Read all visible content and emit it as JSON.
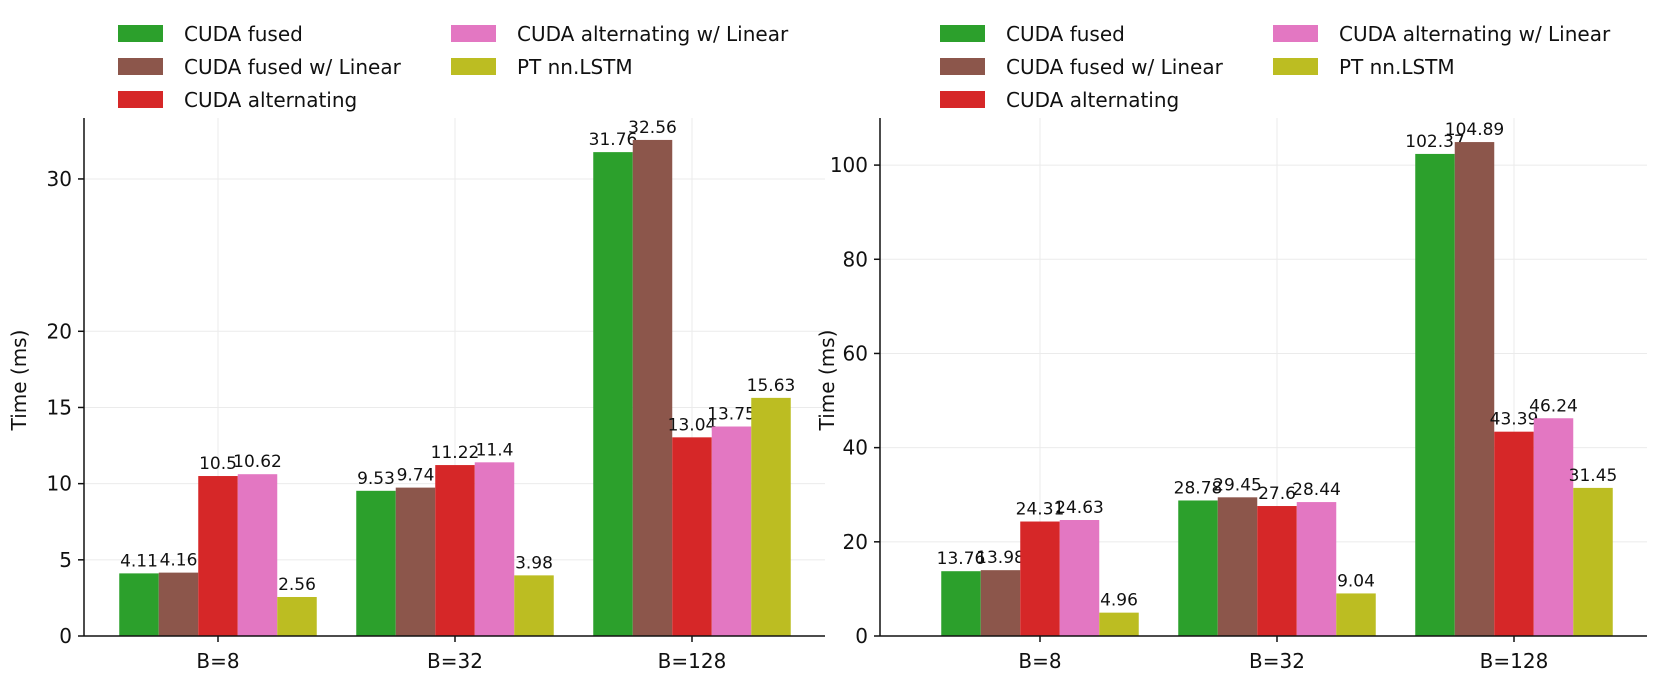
{
  "chart_data": [
    {
      "type": "bar",
      "title": "",
      "xlabel": "",
      "ylabel": "Time (ms)",
      "yticks": [
        0,
        5,
        10,
        15,
        20,
        30
      ],
      "ylim": [
        0,
        34
      ],
      "grid": true,
      "legend_position": "top",
      "categories": [
        "B=8",
        "B=32",
        "B=128"
      ],
      "series": [
        {
          "name": "CUDA fused",
          "color": "#2ca02c",
          "values": [
            4.11,
            9.53,
            31.76
          ]
        },
        {
          "name": "CUDA fused w/ Linear",
          "color": "#8c564b",
          "values": [
            4.16,
            9.74,
            32.56
          ]
        },
        {
          "name": "CUDA alternating",
          "color": "#d62728",
          "values": [
            10.5,
            11.22,
            13.04
          ]
        },
        {
          "name": "CUDA alternating w/ Linear",
          "color": "#e377c2",
          "values": [
            10.62,
            11.4,
            13.75
          ]
        },
        {
          "name": "PT nn.LSTM",
          "color": "#bcbd22",
          "values": [
            2.56,
            3.98,
            15.63
          ]
        }
      ],
      "bar_labels": [
        [
          "4.11",
          "9.53",
          "31.76"
        ],
        [
          "4.16",
          "9.74",
          "32.56"
        ],
        [
          "10.5",
          "11.22",
          "13.04"
        ],
        [
          "10.62",
          "11.4",
          "13.75"
        ],
        [
          "2.56",
          "3.98",
          "15.63"
        ]
      ]
    },
    {
      "type": "bar",
      "title": "",
      "xlabel": "",
      "ylabel": "Time (ms)",
      "yticks": [
        0,
        20,
        40,
        60,
        80,
        100
      ],
      "ylim": [
        0,
        110
      ],
      "grid": true,
      "legend_position": "top",
      "categories": [
        "B=8",
        "B=32",
        "B=128"
      ],
      "series": [
        {
          "name": "CUDA fused",
          "color": "#2ca02c",
          "values": [
            13.76,
            28.78,
            102.37
          ]
        },
        {
          "name": "CUDA fused w/ Linear",
          "color": "#8c564b",
          "values": [
            13.98,
            29.45,
            104.89
          ]
        },
        {
          "name": "CUDA alternating",
          "color": "#d62728",
          "values": [
            24.31,
            27.6,
            43.39
          ]
        },
        {
          "name": "CUDA alternating w/ Linear",
          "color": "#e377c2",
          "values": [
            24.63,
            28.44,
            46.24
          ]
        },
        {
          "name": "PT nn.LSTM",
          "color": "#bcbd22",
          "values": [
            4.96,
            9.04,
            31.45
          ]
        }
      ],
      "bar_labels": [
        [
          "13.76",
          "28.78",
          "102.37"
        ],
        [
          "13.98",
          "29.45",
          "104.89"
        ],
        [
          "24.31",
          "27.6",
          "43.39"
        ],
        [
          "24.63",
          "28.44",
          "46.24"
        ],
        [
          "4.96",
          "9.04",
          "31.45"
        ]
      ]
    }
  ]
}
